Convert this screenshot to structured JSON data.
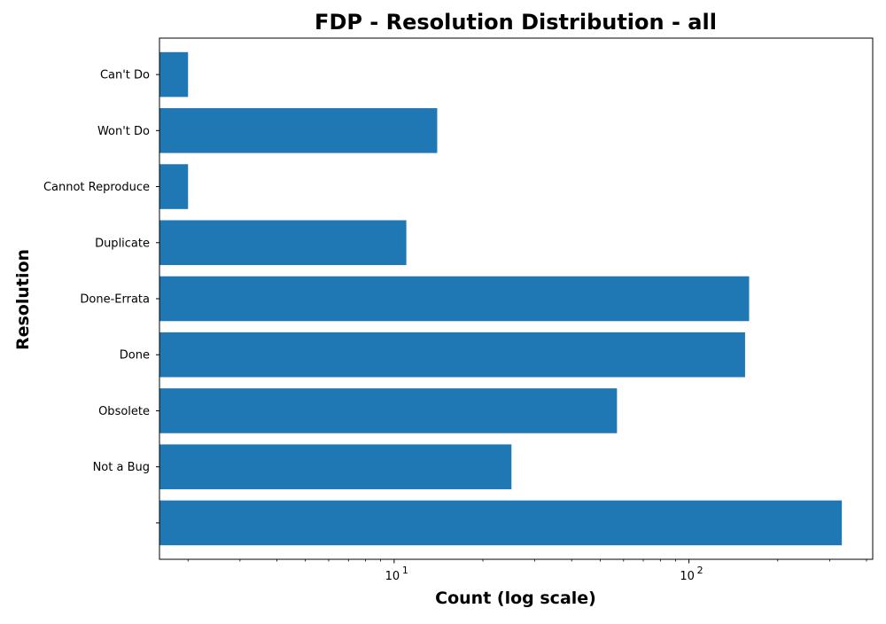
{
  "chart_data": {
    "type": "bar",
    "orientation": "horizontal",
    "title": "FDP - Resolution Distribution - all",
    "xlabel": "Count (log scale)",
    "ylabel": "Resolution",
    "x_scale": "log",
    "xlim": [
      1.6,
      420
    ],
    "major_ticks": [
      {
        "value": 10,
        "base": "10",
        "exp": "1"
      },
      {
        "value": 100,
        "base": "10",
        "exp": "2"
      }
    ],
    "grid": false,
    "bar_color": "#1f77b4",
    "categories": [
      "",
      "Not a Bug",
      "Obsolete",
      "Done",
      "Done-Errata",
      "Duplicate",
      "Cannot Reproduce",
      "Won't Do",
      "Can't Do"
    ],
    "values": [
      330,
      25,
      57,
      155,
      160,
      11,
      2,
      14,
      2
    ]
  }
}
